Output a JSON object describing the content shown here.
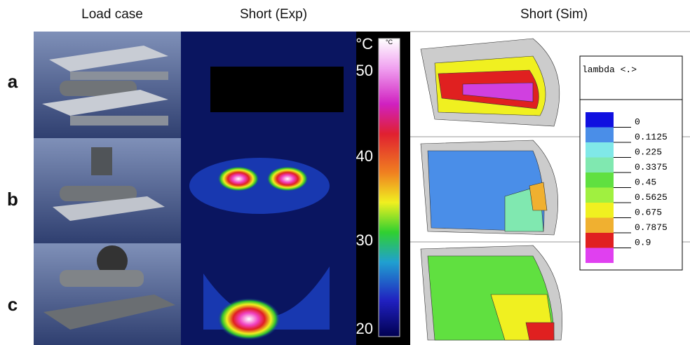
{
  "header": {
    "columns": [
      "Load case",
      "Short (Exp)",
      "Short (Sim)"
    ]
  },
  "rows": [
    {
      "label": "a"
    },
    {
      "label": "b"
    },
    {
      "label": "c"
    }
  ],
  "thermal_scale": {
    "unit": "°C",
    "bar_unit": "°C",
    "ticks": [
      "50",
      "40",
      "30",
      "20"
    ]
  },
  "sim_legend": {
    "title": "lambda <.>",
    "labels": [
      "0",
      "0.1125",
      "0.225",
      "0.3375",
      "0.45",
      "0.5625",
      "0.675",
      "0.7875",
      "0.9"
    ]
  }
}
